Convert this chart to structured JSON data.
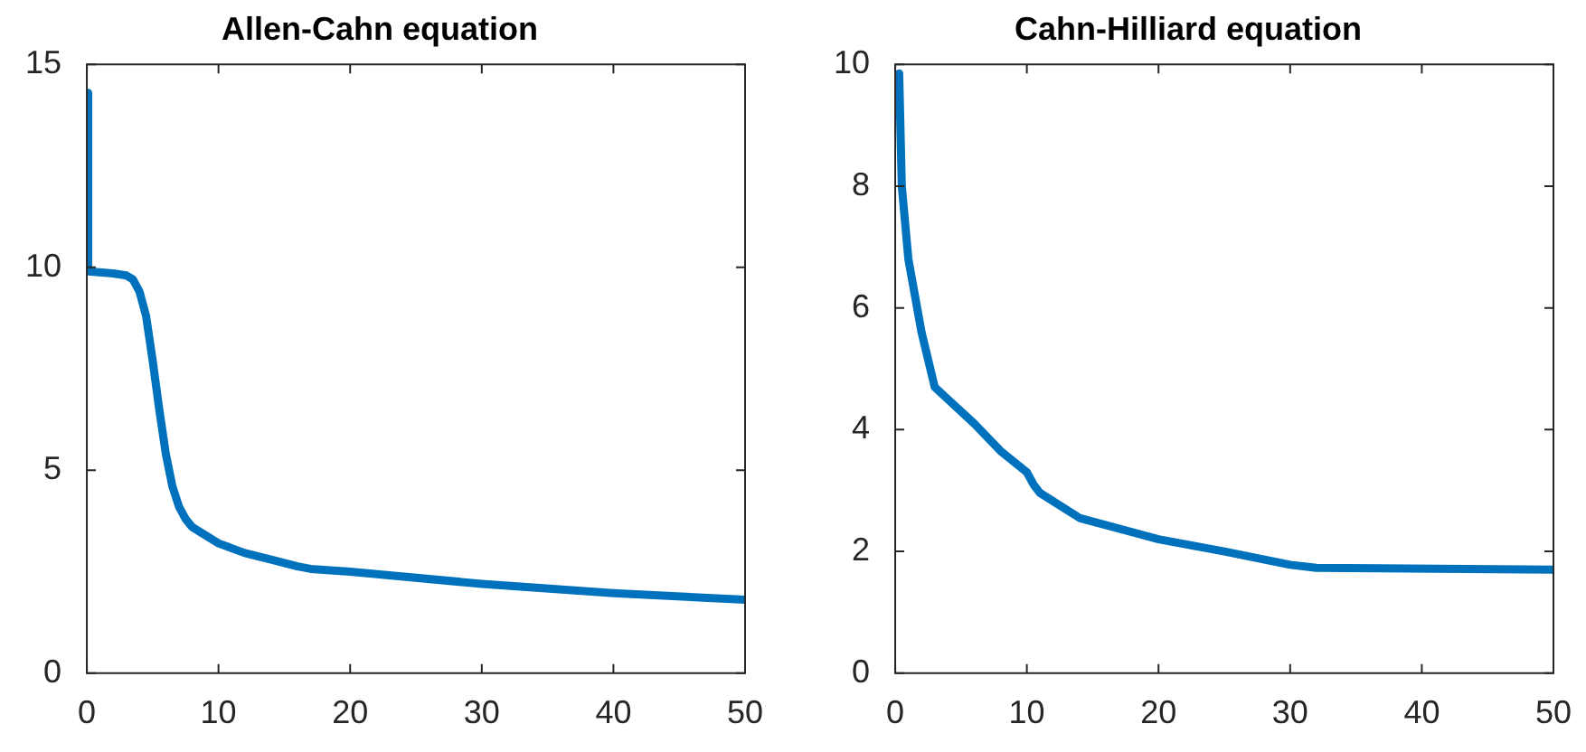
{
  "chart_data": [
    {
      "type": "line",
      "title": "Allen-Cahn equation",
      "xlim": [
        0,
        50
      ],
      "ylim": [
        0,
        15
      ],
      "xticks": [
        0,
        10,
        20,
        30,
        40,
        50
      ],
      "yticks": [
        0,
        5,
        10,
        15
      ],
      "series": [
        {
          "color": "#0072bd",
          "x": [
            0,
            0.1,
            2,
            3,
            3.5,
            4,
            4.5,
            5,
            5.5,
            6,
            6.5,
            7,
            7.5,
            8,
            10,
            12,
            14,
            16,
            17,
            20,
            30,
            40,
            50
          ],
          "values": [
            14.3,
            9.9,
            9.85,
            9.8,
            9.7,
            9.4,
            8.8,
            7.7,
            6.5,
            5.4,
            4.6,
            4.1,
            3.8,
            3.6,
            3.2,
            2.96,
            2.8,
            2.63,
            2.57,
            2.5,
            2.2,
            1.97,
            1.81
          ]
        }
      ]
    },
    {
      "type": "line",
      "title": "Cahn-Hilliard equation",
      "xlim": [
        0,
        50
      ],
      "ylim": [
        0,
        10
      ],
      "xticks": [
        0,
        10,
        20,
        30,
        40,
        50
      ],
      "yticks": [
        0,
        2,
        4,
        6,
        8,
        10
      ],
      "series": [
        {
          "color": "#0072bd",
          "x": [
            0,
            0.3,
            0.5,
            1,
            2,
            3,
            4,
            6,
            8,
            10,
            10.5,
            11,
            14,
            20,
            25,
            30,
            32,
            50
          ],
          "values": [
            9.8,
            9.85,
            8.0,
            6.8,
            5.6,
            4.7,
            4.5,
            4.1,
            3.65,
            3.3,
            3.1,
            2.96,
            2.55,
            2.2,
            2.0,
            1.78,
            1.73,
            1.7
          ]
        }
      ]
    }
  ]
}
